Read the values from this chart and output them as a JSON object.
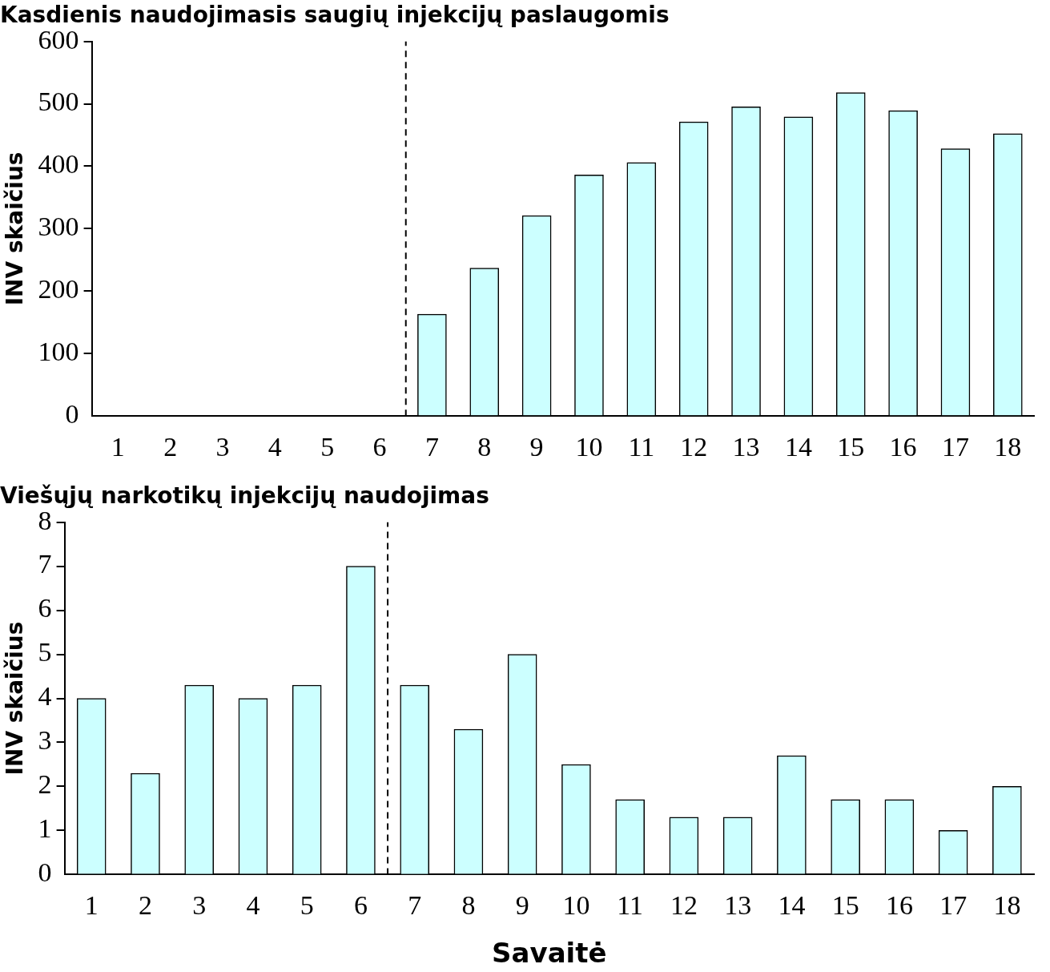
{
  "chart_data": [
    {
      "type": "bar",
      "title": "Kasdienis naudojimasis saugių injekcijų paslaugomis",
      "ylabel": "INV skaičius",
      "series": [
        {
          "color": "#ccffff",
          "x": [
            7,
            8,
            9,
            10,
            11,
            12,
            13,
            14,
            15,
            16,
            17,
            18
          ],
          "values": [
            163,
            237,
            321,
            386,
            406,
            471,
            495,
            479,
            518,
            489,
            428,
            452
          ]
        }
      ],
      "xlim": [
        0.5,
        18.5
      ],
      "xticks": [
        1,
        2,
        3,
        4,
        5,
        6,
        7,
        8,
        9,
        10,
        11,
        12,
        13,
        14,
        15,
        16,
        17,
        18
      ],
      "ylim": [
        0,
        600
      ],
      "yticks": [
        0,
        100,
        200,
        300,
        400,
        500,
        600
      ],
      "ref_lines": [
        {
          "axis": "x",
          "value": 6.5,
          "line_style": "dashed",
          "color": "#000000"
        }
      ],
      "grid": false,
      "legend": false
    },
    {
      "type": "bar",
      "title": "Viešųjų narkotikų injekcijų naudojimas",
      "xlabel": "Savaitė",
      "ylabel": "INV skaičius",
      "x": [
        1,
        2,
        3,
        4,
        5,
        6,
        7,
        8,
        9,
        10,
        11,
        12,
        13,
        14,
        15,
        16,
        17,
        18
      ],
      "series": [
        {
          "color": "#ccffff",
          "values": [
            4,
            2.3,
            4.3,
            4,
            4.3,
            7,
            4.3,
            3.3,
            5,
            2.5,
            1.7,
            1.3,
            1.3,
            2.7,
            1.7,
            1.7,
            1,
            2
          ]
        }
      ],
      "xlim": [
        0.5,
        18.5
      ],
      "xticks": [
        1,
        2,
        3,
        4,
        5,
        6,
        7,
        8,
        9,
        10,
        11,
        12,
        13,
        14,
        15,
        16,
        17,
        18
      ],
      "ylim": [
        0,
        8
      ],
      "yticks": [
        0,
        1,
        2,
        3,
        4,
        5,
        6,
        7,
        8
      ],
      "ref_lines": [
        {
          "axis": "x",
          "value": 6.5,
          "line_style": "dashed",
          "color": "#000000"
        }
      ],
      "grid": false,
      "legend": false
    }
  ]
}
